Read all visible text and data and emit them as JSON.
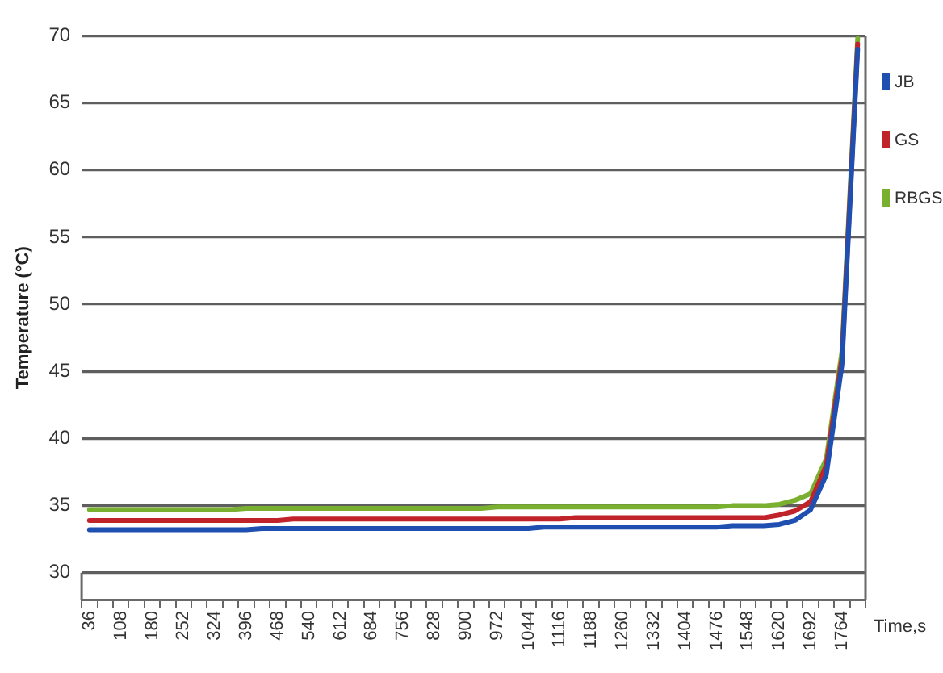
{
  "chart_data": {
    "type": "line",
    "ylabel": "Temperature (°C)",
    "xlabel": "Time,s",
    "categories": [
      "36",
      null,
      "108",
      null,
      "180",
      null,
      "252",
      null,
      "324",
      null,
      "396",
      null,
      "468",
      null,
      "540",
      null,
      "612",
      null,
      "684",
      null,
      "756",
      null,
      "828",
      null,
      "900",
      null,
      "972",
      null,
      "1044",
      null,
      "1116",
      null,
      "1188",
      null,
      "1260",
      null,
      "1332",
      null,
      "1404",
      null,
      "1476",
      null,
      "1548",
      null,
      "1620",
      null,
      "1692",
      null,
      "1764",
      null
    ],
    "series": [
      {
        "name": "JB",
        "color": "#1f4fb0",
        "values": [
          33.2,
          33.2,
          33.2,
          33.2,
          33.2,
          33.2,
          33.2,
          33.2,
          33.2,
          33.2,
          33.2,
          33.3,
          33.3,
          33.3,
          33.3,
          33.3,
          33.3,
          33.3,
          33.3,
          33.3,
          33.3,
          33.3,
          33.3,
          33.3,
          33.3,
          33.3,
          33.3,
          33.3,
          33.3,
          33.4,
          33.4,
          33.4,
          33.4,
          33.4,
          33.4,
          33.4,
          33.4,
          33.4,
          33.4,
          33.4,
          33.4,
          33.5,
          33.5,
          33.5,
          33.6,
          33.9,
          34.7,
          37.3,
          45.5,
          69.0
        ]
      },
      {
        "name": "GS",
        "color": "#c0232a",
        "values": [
          33.9,
          33.9,
          33.9,
          33.9,
          33.9,
          33.9,
          33.9,
          33.9,
          33.9,
          33.9,
          33.9,
          33.9,
          33.9,
          34.0,
          34.0,
          34.0,
          34.0,
          34.0,
          34.0,
          34.0,
          34.0,
          34.0,
          34.0,
          34.0,
          34.0,
          34.0,
          34.0,
          34.0,
          34.0,
          34.0,
          34.0,
          34.1,
          34.1,
          34.1,
          34.1,
          34.1,
          34.1,
          34.1,
          34.1,
          34.1,
          34.1,
          34.1,
          34.1,
          34.1,
          34.3,
          34.6,
          35.3,
          38.0,
          46.0,
          69.4
        ]
      },
      {
        "name": "RBGS",
        "color": "#79b030",
        "values": [
          34.7,
          34.7,
          34.7,
          34.7,
          34.7,
          34.7,
          34.7,
          34.7,
          34.7,
          34.7,
          34.8,
          34.8,
          34.8,
          34.8,
          34.8,
          34.8,
          34.8,
          34.8,
          34.8,
          34.8,
          34.8,
          34.8,
          34.8,
          34.8,
          34.8,
          34.8,
          34.9,
          34.9,
          34.9,
          34.9,
          34.9,
          34.9,
          34.9,
          34.9,
          34.9,
          34.9,
          34.9,
          34.9,
          34.9,
          34.9,
          34.9,
          35.0,
          35.0,
          35.0,
          35.1,
          35.4,
          35.9,
          38.5,
          46.5,
          69.8
        ]
      }
    ],
    "ylim": [
      28,
      70
    ],
    "yticks": [
      30,
      35,
      40,
      45,
      50,
      55,
      60,
      65,
      70
    ],
    "grid": "y",
    "legend": "right"
  }
}
